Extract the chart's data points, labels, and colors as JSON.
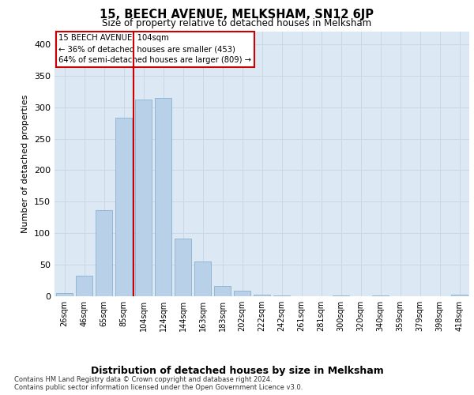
{
  "title": "15, BEECH AVENUE, MELKSHAM, SN12 6JP",
  "subtitle": "Size of property relative to detached houses in Melksham",
  "xlabel": "Distribution of detached houses by size in Melksham",
  "ylabel": "Number of detached properties",
  "categories": [
    "26sqm",
    "46sqm",
    "65sqm",
    "85sqm",
    "104sqm",
    "124sqm",
    "144sqm",
    "163sqm",
    "183sqm",
    "202sqm",
    "222sqm",
    "242sqm",
    "261sqm",
    "281sqm",
    "300sqm",
    "320sqm",
    "340sqm",
    "359sqm",
    "379sqm",
    "398sqm",
    "418sqm"
  ],
  "values": [
    5,
    33,
    137,
    283,
    312,
    315,
    92,
    55,
    16,
    9,
    3,
    1,
    0,
    0,
    1,
    0,
    1,
    0,
    0,
    0,
    2
  ],
  "bar_color": "#b8d0e8",
  "bar_edge_color": "#7aaac8",
  "property_line_x": 4,
  "annotation_line1": "15 BEECH AVENUE: 104sqm",
  "annotation_line2": "← 36% of detached houses are smaller (453)",
  "annotation_line3": "64% of semi-detached houses are larger (809) →",
  "annotation_box_color": "#ffffff",
  "annotation_box_edge": "#cc0000",
  "property_line_color": "#cc0000",
  "grid_color": "#c8d8e8",
  "background_color": "#dce8f4",
  "ylim": [
    0,
    420
  ],
  "yticks": [
    0,
    50,
    100,
    150,
    200,
    250,
    300,
    350,
    400
  ],
  "footer_line1": "Contains HM Land Registry data © Crown copyright and database right 2024.",
  "footer_line2": "Contains public sector information licensed under the Open Government Licence v3.0."
}
